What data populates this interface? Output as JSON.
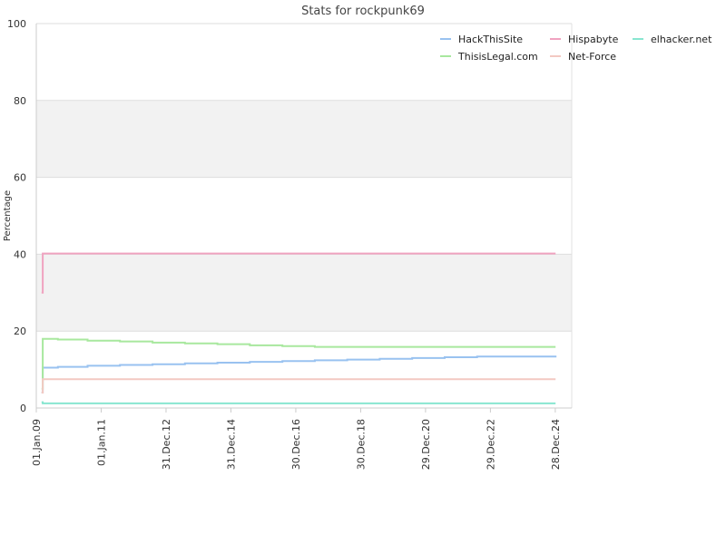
{
  "chart_data": {
    "type": "line",
    "title": "Stats for rockpunk69",
    "xlabel": "",
    "ylabel": "Percentage",
    "ylim": [
      0,
      100
    ],
    "yticks": [
      0,
      20,
      40,
      60,
      80,
      100
    ],
    "xlim": [
      "2009-01-01",
      "2025-07-01"
    ],
    "xticks": [
      "2009-01-01",
      "2011-01-01",
      "2012-12-31",
      "2014-12-31",
      "2016-12-30",
      "2018-12-30",
      "2020-12-29",
      "2022-12-29",
      "2024-12-28"
    ],
    "xtick_labels": [
      "01.Jan.09",
      "01.Jan.11",
      "31.Dec.12",
      "31.Dec.14",
      "30.Dec.16",
      "30.Dec.18",
      "29.Dec.20",
      "29.Dec.22",
      "28.Dec.24"
    ],
    "grid": true,
    "legend_position": "top-right",
    "series": [
      {
        "name": "HackThisSite",
        "color": "#99c2f0",
        "x": [
          "2009-03-01",
          "2009-03-15",
          "2009-09-01",
          "2010-08-01",
          "2011-08-01",
          "2012-08-01",
          "2013-08-01",
          "2014-08-01",
          "2015-08-01",
          "2016-08-01",
          "2017-08-01",
          "2018-08-01",
          "2019-08-01",
          "2020-08-01",
          "2021-08-01",
          "2022-08-01",
          "2024-12-31"
        ],
        "y": [
          4,
          10.5,
          10.7,
          11,
          11.2,
          11.4,
          11.6,
          11.8,
          12,
          12.2,
          12.4,
          12.6,
          12.8,
          13,
          13.2,
          13.4,
          13.6
        ]
      },
      {
        "name": "Hispabyte",
        "color": "#f0a3c0",
        "x": [
          "2009-03-01",
          "2009-03-15",
          "2024-12-31"
        ],
        "y": [
          30,
          40.2,
          40.2
        ]
      },
      {
        "name": "elhacker.net",
        "color": "#88e6d0",
        "x": [
          "2009-03-01",
          "2009-03-15",
          "2024-12-31"
        ],
        "y": [
          1.5,
          1.2,
          1.2
        ]
      },
      {
        "name": "ThisisLegal.com",
        "color": "#a8e89e",
        "x": [
          "2009-03-01",
          "2009-03-15",
          "2009-09-01",
          "2010-08-01",
          "2011-08-01",
          "2012-08-01",
          "2013-08-01",
          "2014-08-01",
          "2015-08-01",
          "2016-08-01",
          "2017-08-01",
          "2024-12-31"
        ],
        "y": [
          5,
          18,
          17.8,
          17.5,
          17.3,
          17,
          16.8,
          16.6,
          16.3,
          16.1,
          15.9,
          15.9
        ]
      },
      {
        "name": "Net-Force",
        "color": "#f3c9c2",
        "x": [
          "2009-03-01",
          "2009-03-15",
          "2024-12-31"
        ],
        "y": [
          4,
          7.5,
          7.5
        ]
      }
    ]
  }
}
